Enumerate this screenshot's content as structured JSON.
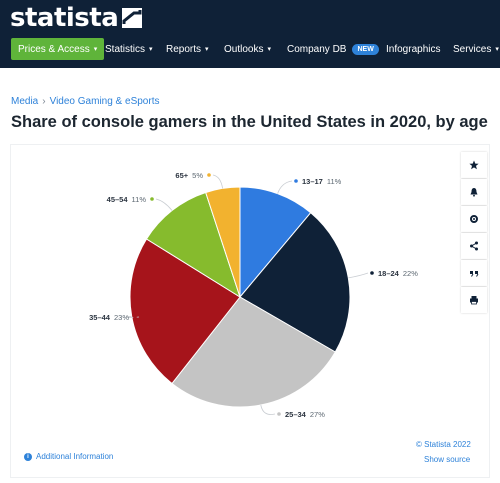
{
  "brand": {
    "name": "statista"
  },
  "nav": {
    "items": [
      {
        "label": "Prices & Access",
        "caret": "▾",
        "primary": true
      },
      {
        "label": "Statistics",
        "caret": "▾"
      },
      {
        "label": "Reports",
        "caret": "▾"
      },
      {
        "label": "Outlooks",
        "caret": "▾"
      },
      {
        "label": "Company DB",
        "badge": "NEW"
      },
      {
        "label": "Infographics"
      },
      {
        "label": "Services",
        "caret": "▾"
      }
    ]
  },
  "breadcrumb": {
    "items": [
      "Media",
      "Video Gaming & eSports"
    ],
    "separator": "›"
  },
  "page_title": "Share of console gamers in the United States in 2020, by age",
  "footer": {
    "copyright": "© Statista 2022",
    "show_source": "Show source",
    "additional_info": "Additional Information"
  },
  "toolbar": {
    "icons": [
      "star-icon",
      "bell-icon",
      "gear-icon",
      "share-icon",
      "quote-icon",
      "print-icon"
    ]
  },
  "colors": {
    "header_bg": "#0f2137",
    "primary_green": "#5fb43a",
    "link_blue": "#2e82d9"
  },
  "chart_data": {
    "type": "pie",
    "categories": [
      "13-17",
      "18-24",
      "25-34",
      "35-44",
      "45-54",
      "65+"
    ],
    "values": [
      11,
      22,
      27,
      23,
      11,
      5
    ],
    "value_labels": [
      "11%",
      "22%",
      "27%",
      "23%",
      "11%",
      "5%"
    ],
    "colors": [
      "#2f7be0",
      "#0f2137",
      "#c4c4c4",
      "#a6141b",
      "#86bb2d",
      "#f2b22f"
    ],
    "label_position": "outside"
  }
}
